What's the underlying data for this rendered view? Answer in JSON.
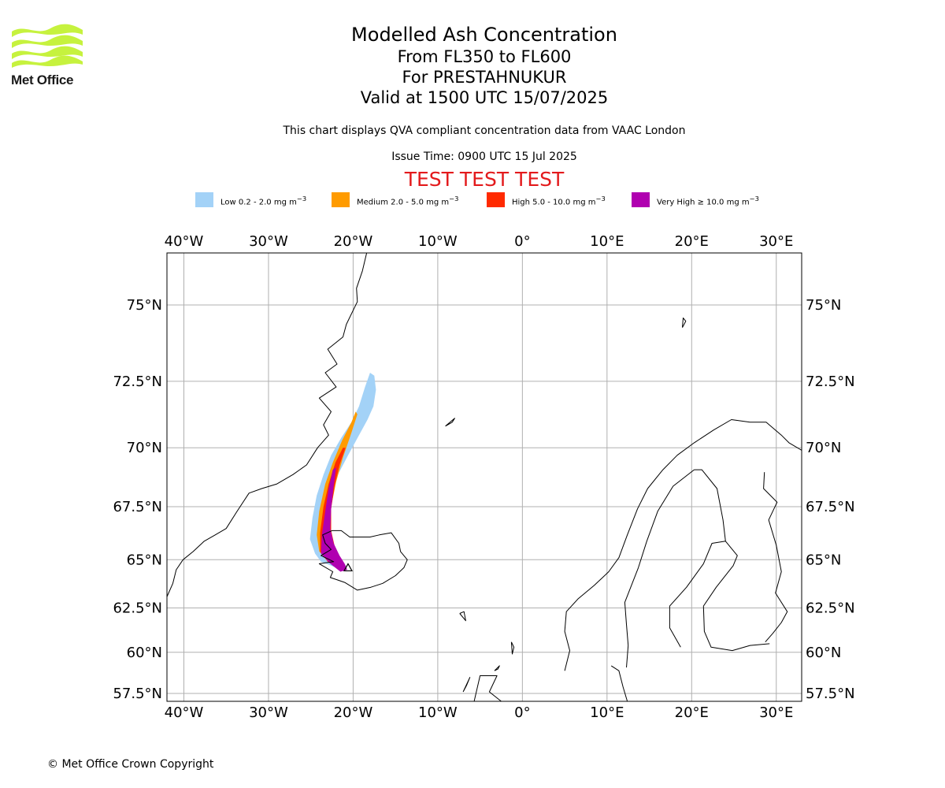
{
  "logo": {
    "text": "Met Office",
    "colors": {
      "waves": "#c6f23e",
      "text": "#1a1a1a"
    }
  },
  "titles": {
    "title": "Modelled Ash Concentration",
    "levels": "From FL350 to FL600",
    "volcano": "For PRESTAHNUKUR",
    "valid": "Valid at 1500 UTC 15/07/2025"
  },
  "description": "This chart displays QVA compliant concentration data from VAAC London",
  "issue_time": "Issue Time: 0900 UTC 15 Jul 2025",
  "test_banner": "TEST TEST TEST",
  "legend": [
    {
      "label": "Low 0.2 - 2.0 mg m",
      "sup": "−3",
      "color": "#a3d2f7"
    },
    {
      "label": "Medium 2.0 - 5.0 mg m",
      "sup": "−3",
      "color": "#ff9b00"
    },
    {
      "label": "High 5.0 - 10.0 mg m",
      "sup": "−3",
      "color": "#ff2a00"
    },
    {
      "label": "Very High  ≥  10.0 mg m",
      "sup": "−3",
      "color": "#b000b0"
    }
  ],
  "map": {
    "lon_range": [
      -42,
      33
    ],
    "lat_range": [
      57,
      76.5
    ],
    "lon_ticks": [
      {
        "value": -40,
        "label": "40°W"
      },
      {
        "value": -30,
        "label": "30°W"
      },
      {
        "value": -20,
        "label": "20°W"
      },
      {
        "value": -10,
        "label": "10°W"
      },
      {
        "value": 0,
        "label": "0°"
      },
      {
        "value": 10,
        "label": "10°E"
      },
      {
        "value": 20,
        "label": "20°E"
      },
      {
        "value": 30,
        "label": "30°E"
      }
    ],
    "lat_ticks": [
      {
        "value": 75,
        "label": "75°N"
      },
      {
        "value": 72.5,
        "label": "72.5°N"
      },
      {
        "value": 70,
        "label": "70°N"
      },
      {
        "value": 67.5,
        "label": "67.5°N"
      },
      {
        "value": 65,
        "label": "65°N"
      },
      {
        "value": 62.5,
        "label": "62.5°N"
      },
      {
        "value": 60,
        "label": "60°N"
      },
      {
        "value": 57.5,
        "label": "57.5°N"
      }
    ],
    "gridlines": true,
    "colors": {
      "grid": "#b0b0b0",
      "coast": "#000000"
    },
    "volcano": {
      "name": "PRESTAHNUKUR",
      "lon": -20.6,
      "lat": 64.6
    },
    "ash_polygons": [
      {
        "level": "low",
        "color": "#a3d2f7",
        "coords": [
          [
            -17.5,
            72.7
          ],
          [
            -17.3,
            72.2
          ],
          [
            -17.6,
            71.6
          ],
          [
            -18.3,
            71.1
          ],
          [
            -19.3,
            70.5
          ],
          [
            -20.6,
            69.7
          ],
          [
            -21.8,
            68.9
          ],
          [
            -22.6,
            68.0
          ],
          [
            -23.2,
            67.0
          ],
          [
            -23.3,
            66.0
          ],
          [
            -22.5,
            65.2
          ],
          [
            -21.3,
            64.8
          ],
          [
            -20.8,
            64.7
          ],
          [
            -21.4,
            64.5
          ],
          [
            -22.6,
            64.7
          ],
          [
            -23.8,
            64.9
          ],
          [
            -24.5,
            65.3
          ],
          [
            -25.1,
            66.0
          ],
          [
            -24.8,
            67.0
          ],
          [
            -24.3,
            68.0
          ],
          [
            -23.5,
            68.9
          ],
          [
            -22.6,
            69.7
          ],
          [
            -21.4,
            70.4
          ],
          [
            -20.2,
            71.0
          ],
          [
            -19.3,
            71.6
          ],
          [
            -18.6,
            72.3
          ],
          [
            -18.0,
            72.8
          ]
        ]
      },
      {
        "level": "medium",
        "color": "#ff9b00",
        "coords": [
          [
            -19.5,
            71.3
          ],
          [
            -20.2,
            70.6
          ],
          [
            -21.2,
            69.6
          ],
          [
            -22.0,
            68.6
          ],
          [
            -22.6,
            67.5
          ],
          [
            -22.8,
            66.5
          ],
          [
            -22.3,
            65.5
          ],
          [
            -21.2,
            64.8
          ],
          [
            -20.8,
            64.6
          ],
          [
            -21.6,
            64.5
          ],
          [
            -23.0,
            64.9
          ],
          [
            -24.0,
            65.4
          ],
          [
            -24.3,
            66.2
          ],
          [
            -24.0,
            67.3
          ],
          [
            -23.3,
            68.5
          ],
          [
            -22.4,
            69.4
          ],
          [
            -21.3,
            70.3
          ],
          [
            -20.2,
            71.0
          ],
          [
            -19.7,
            71.4
          ]
        ]
      },
      {
        "level": "high",
        "color": "#ff2a00",
        "coords": [
          [
            -20.9,
            70.0
          ],
          [
            -21.6,
            69.3
          ],
          [
            -22.2,
            68.4
          ],
          [
            -22.6,
            67.4
          ],
          [
            -22.6,
            66.4
          ],
          [
            -22.1,
            65.5
          ],
          [
            -21.1,
            64.8
          ],
          [
            -20.8,
            64.6
          ],
          [
            -21.7,
            64.5
          ],
          [
            -23.0,
            64.9
          ],
          [
            -23.9,
            65.4
          ],
          [
            -23.9,
            66.3
          ],
          [
            -23.5,
            67.5
          ],
          [
            -22.9,
            68.5
          ],
          [
            -22.1,
            69.4
          ],
          [
            -21.2,
            70.0
          ]
        ]
      },
      {
        "level": "very high",
        "color": "#b000b0",
        "coords": [
          [
            -22.0,
            69.2
          ],
          [
            -22.3,
            68.4
          ],
          [
            -22.6,
            67.4
          ],
          [
            -22.7,
            66.5
          ],
          [
            -22.3,
            65.8
          ],
          [
            -21.6,
            65.2
          ],
          [
            -21.0,
            64.8
          ],
          [
            -20.7,
            64.5
          ],
          [
            -21.5,
            64.4
          ],
          [
            -22.7,
            64.8
          ],
          [
            -23.8,
            65.3
          ],
          [
            -23.7,
            66.2
          ],
          [
            -23.3,
            67.3
          ],
          [
            -22.9,
            68.3
          ],
          [
            -22.4,
            69.1
          ]
        ]
      }
    ],
    "coastlines": {
      "greenland": [
        [
          -42,
          63.1
        ],
        [
          -41.3,
          63.8
        ],
        [
          -40.9,
          64.5
        ],
        [
          -40.1,
          65.0
        ],
        [
          -38.9,
          65.4
        ],
        [
          -37.6,
          65.9
        ],
        [
          -36.3,
          66.2
        ],
        [
          -35.0,
          66.5
        ],
        [
          -33.7,
          67.3
        ],
        [
          -32.3,
          68.1
        ],
        [
          -30.8,
          68.3
        ],
        [
          -29.0,
          68.5
        ],
        [
          -27.1,
          68.9
        ],
        [
          -25.5,
          69.3
        ],
        [
          -24.2,
          70.0
        ],
        [
          -22.9,
          70.5
        ],
        [
          -23.5,
          70.9
        ],
        [
          -22.6,
          71.4
        ],
        [
          -24.0,
          71.9
        ],
        [
          -22.0,
          72.3
        ],
        [
          -23.3,
          72.8
        ],
        [
          -21.9,
          73.1
        ],
        [
          -23.0,
          73.6
        ],
        [
          -21.2,
          74.0
        ],
        [
          -20.8,
          74.4
        ],
        [
          -19.5,
          75.1
        ],
        [
          -19.6,
          75.5
        ],
        [
          -18.9,
          76.0
        ],
        [
          -18.4,
          76.5
        ]
      ],
      "iceland": [
        [
          -22.0,
          64.0
        ],
        [
          -21.0,
          63.85
        ],
        [
          -19.5,
          63.45
        ],
        [
          -17.9,
          63.6
        ],
        [
          -16.5,
          63.8
        ],
        [
          -15.0,
          64.2
        ],
        [
          -14.0,
          64.6
        ],
        [
          -13.6,
          65.0
        ],
        [
          -14.4,
          65.4
        ],
        [
          -14.6,
          65.8
        ],
        [
          -15.5,
          66.3
        ],
        [
          -16.9,
          66.2
        ],
        [
          -18.0,
          66.1
        ],
        [
          -19.4,
          66.1
        ],
        [
          -20.4,
          66.1
        ],
        [
          -21.4,
          66.4
        ],
        [
          -22.5,
          66.4
        ],
        [
          -23.6,
          66.2
        ],
        [
          -23.3,
          65.8
        ],
        [
          -22.6,
          65.5
        ],
        [
          -23.8,
          65.2
        ],
        [
          -22.3,
          64.9
        ],
        [
          -24.0,
          64.8
        ],
        [
          -22.4,
          64.4
        ],
        [
          -22.7,
          64.1
        ],
        [
          -22.0,
          64.0
        ]
      ],
      "scandinavia": [
        [
          5.0,
          58.9
        ],
        [
          5.6,
          60.1
        ],
        [
          5.0,
          61.2
        ],
        [
          5.2,
          62.3
        ],
        [
          6.6,
          63.0
        ],
        [
          8.5,
          63.7
        ],
        [
          10.2,
          64.4
        ],
        [
          11.4,
          65.1
        ],
        [
          12.4,
          66.2
        ],
        [
          13.6,
          67.4
        ],
        [
          14.8,
          68.3
        ],
        [
          16.6,
          69.1
        ],
        [
          18.3,
          69.7
        ],
        [
          20.3,
          70.2
        ],
        [
          22.6,
          70.7
        ],
        [
          24.7,
          71.1
        ],
        [
          26.9,
          71.0
        ],
        [
          28.8,
          71.0
        ],
        [
          30.6,
          70.5
        ],
        [
          31.5,
          70.2
        ],
        [
          33.0,
          69.9
        ]
      ],
      "baltic_west": [
        [
          10.5,
          59.2
        ],
        [
          11.4,
          58.9
        ],
        [
          11.9,
          57.9
        ],
        [
          12.4,
          57.0
        ]
      ],
      "gulf_bothnia": [
        [
          18.7,
          60.3
        ],
        [
          17.4,
          61.4
        ],
        [
          17.4,
          62.6
        ],
        [
          19.4,
          63.6
        ],
        [
          21.4,
          64.8
        ],
        [
          22.4,
          65.8
        ],
        [
          24.0,
          65.9
        ],
        [
          25.4,
          65.2
        ],
        [
          24.9,
          64.7
        ],
        [
          22.9,
          63.6
        ],
        [
          21.4,
          62.6
        ],
        [
          21.5,
          61.2
        ],
        [
          22.3,
          60.3
        ],
        [
          24.8,
          60.1
        ],
        [
          26.9,
          60.4
        ],
        [
          29.2,
          60.5
        ]
      ],
      "finland_border": [
        [
          24.0,
          65.9
        ],
        [
          23.7,
          66.9
        ],
        [
          23.0,
          68.3
        ],
        [
          21.2,
          69.1
        ],
        [
          20.3,
          69.1
        ]
      ],
      "russia_border": [
        [
          28.6,
          69.0
        ],
        [
          28.5,
          68.3
        ],
        [
          30.1,
          67.7
        ],
        [
          29.1,
          66.9
        ],
        [
          30.0,
          65.7
        ],
        [
          30.6,
          64.4
        ],
        [
          29.9,
          63.3
        ],
        [
          31.3,
          62.3
        ],
        [
          30.6,
          61.7
        ],
        [
          29.6,
          61.1
        ],
        [
          28.7,
          60.6
        ]
      ],
      "sweden_norway_border": [
        [
          12.3,
          59.1
        ],
        [
          12.5,
          60.4
        ],
        [
          12.3,
          61.6
        ],
        [
          12.1,
          62.8
        ],
        [
          13.7,
          64.6
        ],
        [
          14.7,
          65.9
        ],
        [
          16.0,
          67.3
        ],
        [
          17.8,
          68.4
        ],
        [
          20.3,
          69.1
        ]
      ],
      "shetland": [
        [
          -1.3,
          60.6
        ],
        [
          -1.2,
          59.9
        ],
        [
          -1.0,
          60.3
        ],
        [
          -1.3,
          60.6
        ]
      ],
      "faroes": [
        [
          -7.4,
          62.2
        ],
        [
          -6.7,
          61.8
        ],
        [
          -6.9,
          62.3
        ],
        [
          -7.4,
          62.2
        ]
      ],
      "jan_mayen": [
        [
          -9.1,
          70.85
        ],
        [
          -8.0,
          71.15
        ],
        [
          -8.3,
          71.0
        ],
        [
          -9.1,
          70.85
        ]
      ],
      "bear_island": [
        [
          18.9,
          74.3
        ],
        [
          19.3,
          74.5
        ],
        [
          19.0,
          74.6
        ],
        [
          18.9,
          74.3
        ]
      ],
      "scotland": [
        [
          -5.7,
          57.0
        ],
        [
          -5.0,
          58.6
        ],
        [
          -3.0,
          58.6
        ],
        [
          -3.9,
          57.6
        ],
        [
          -2.5,
          57.0
        ]
      ],
      "lewis": [
        [
          -7.0,
          57.6
        ],
        [
          -6.2,
          58.5
        ],
        [
          -6.6,
          58.0
        ],
        [
          -7.0,
          57.6
        ]
      ],
      "orkney": [
        [
          -3.3,
          58.9
        ],
        [
          -2.7,
          59.2
        ],
        [
          -2.9,
          59.0
        ],
        [
          -3.3,
          58.9
        ]
      ]
    }
  }
}
